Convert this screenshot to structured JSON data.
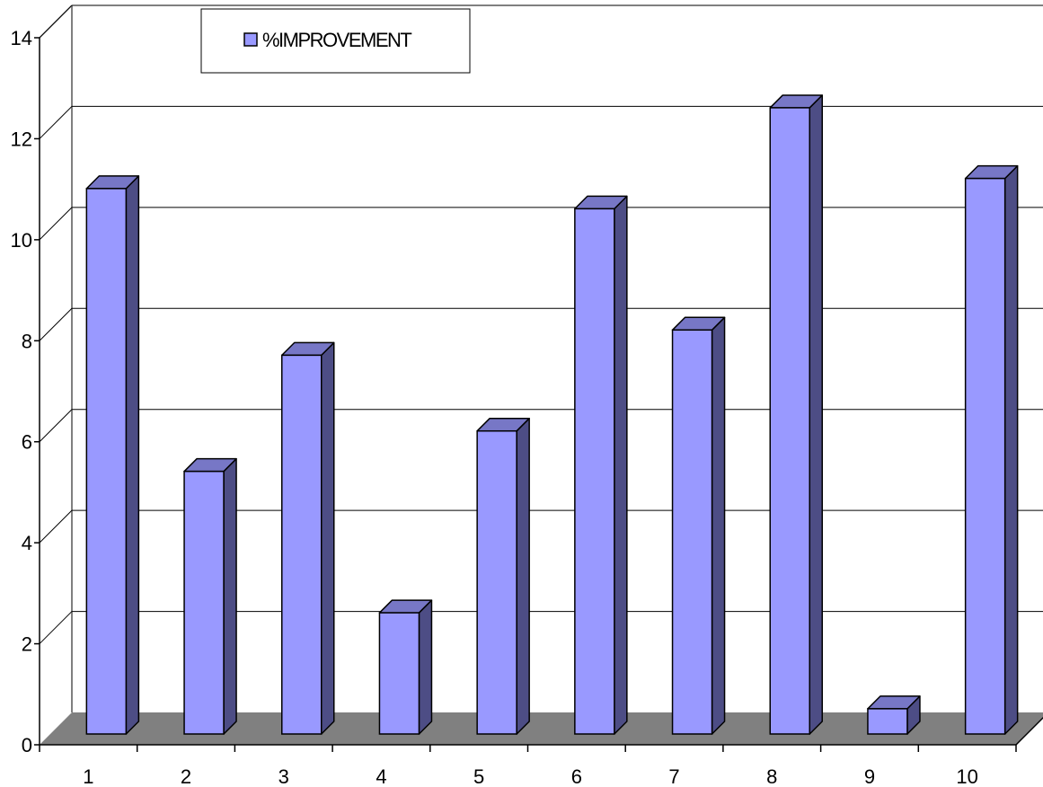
{
  "chart_data": {
    "type": "bar",
    "style": "3d-column",
    "categories": [
      "1",
      "2",
      "3",
      "4",
      "5",
      "6",
      "7",
      "8",
      "9",
      "10"
    ],
    "series": [
      {
        "name": "%IMPROVEMENT",
        "values": [
          10.8,
          5.2,
          7.5,
          2.4,
          6.0,
          10.4,
          8.0,
          12.4,
          0.5,
          11.0
        ]
      }
    ],
    "ylim": [
      0,
      14
    ],
    "yticks": [
      "0",
      "2",
      "4",
      "6",
      "8",
      "10",
      "12",
      "14"
    ],
    "grid": true,
    "legend_position": "top",
    "colors": {
      "bar_front": "#9999ff",
      "bar_side": "#4d4d85",
      "bar_top": "#7777c6",
      "floor": "#808080",
      "gridline": "#000000"
    }
  }
}
